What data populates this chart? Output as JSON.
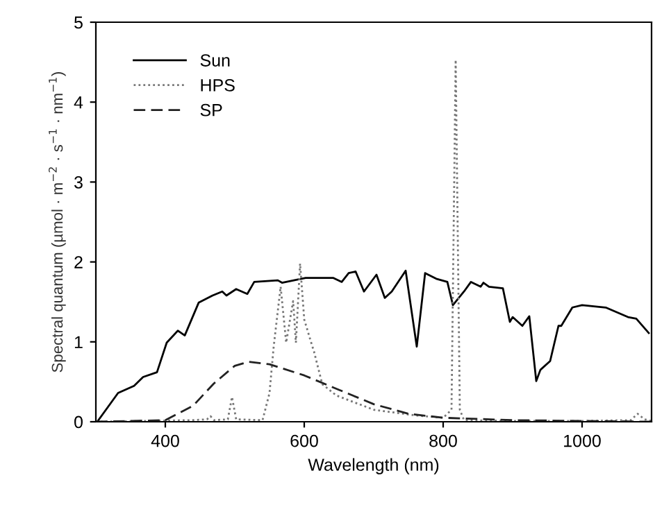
{
  "chart_data": {
    "type": "line",
    "xlabel": "Wavelength (nm)",
    "ylabel": "Spectral quantum (µmol · m$^{−2}$ · s$^{−1}$ · nm$^{−1}$)",
    "xlim": [
      300,
      1100
    ],
    "ylim": [
      0,
      5
    ],
    "xticks": [
      400,
      600,
      800,
      1000
    ],
    "yticks": [
      0,
      1,
      2,
      3,
      4,
      5
    ],
    "grid": false,
    "legend": "top left",
    "marker": "none",
    "series": [
      {
        "name": "Sun",
        "color": "#000000",
        "line_style": "solid",
        "x": [
          302,
          332,
          355,
          368,
          388,
          402,
          418,
          428,
          448,
          468,
          482,
          488,
          502,
          518,
          528,
          562,
          568,
          602,
          642,
          654,
          664,
          674,
          686,
          704,
          716,
          726,
          746,
          762,
          774,
          790,
          806,
          814,
          830,
          840,
          854,
          858,
          866,
          886,
          896,
          900,
          914,
          924,
          934,
          940,
          954,
          966,
          970,
          986,
          1000,
          1034,
          1066,
          1078,
          1096
        ],
        "values": [
          0,
          0.36,
          0.45,
          0.56,
          0.62,
          0.99,
          1.14,
          1.08,
          1.49,
          1.58,
          1.63,
          1.58,
          1.66,
          1.6,
          1.75,
          1.77,
          1.74,
          1.8,
          1.8,
          1.75,
          1.86,
          1.88,
          1.63,
          1.84,
          1.55,
          1.63,
          1.89,
          0.94,
          1.86,
          1.79,
          1.75,
          1.46,
          1.63,
          1.75,
          1.69,
          1.74,
          1.69,
          1.67,
          1.25,
          1.31,
          1.2,
          1.32,
          0.51,
          0.65,
          0.76,
          1.2,
          1.2,
          1.43,
          1.46,
          1.43,
          1.31,
          1.29,
          1.11
        ]
      },
      {
        "name": "HPS",
        "color": "#777777",
        "line_style": "dotted",
        "x": [
          300,
          440,
          460,
          465,
          470,
          490,
          496,
          502,
          540,
          550,
          556,
          566,
          574,
          584,
          588,
          594,
          600,
          610,
          614,
          626,
          646,
          700,
          760,
          800,
          812,
          818,
          824,
          830,
          900,
          1000,
          1070,
          1080,
          1090,
          1100
        ],
        "values": [
          0,
          0.02,
          0.03,
          0.07,
          0.02,
          0.03,
          0.31,
          0.03,
          0.02,
          0.36,
          0.94,
          1.69,
          0.99,
          1.51,
          0.99,
          1.98,
          1.28,
          0.99,
          0.88,
          0.47,
          0.33,
          0.15,
          0.08,
          0.05,
          0.15,
          4.53,
          0.15,
          0.02,
          0.01,
          0.01,
          0.02,
          0.1,
          0.03,
          0.01
        ]
      },
      {
        "name": "SP",
        "color": "#222222",
        "line_style": "dashed",
        "x": [
          300,
          400,
          440,
          470,
          500,
          520,
          550,
          600,
          650,
          700,
          750,
          800,
          900,
          1000,
          1100
        ],
        "values": [
          0,
          0.02,
          0.2,
          0.48,
          0.7,
          0.75,
          0.72,
          0.58,
          0.4,
          0.22,
          0.1,
          0.05,
          0.02,
          0.01,
          0
        ]
      }
    ]
  }
}
